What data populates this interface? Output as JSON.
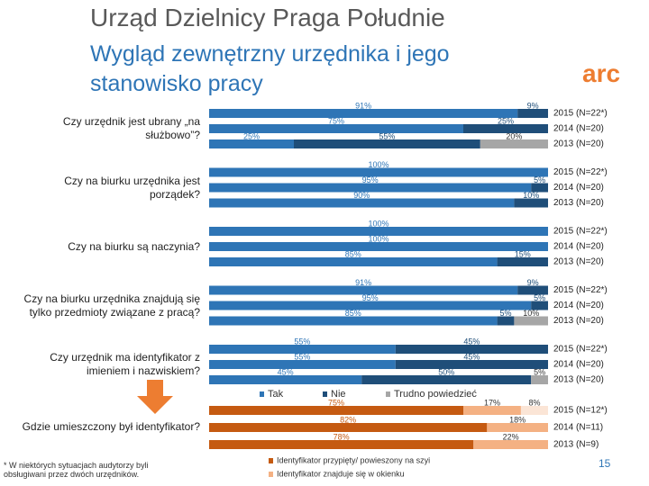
{
  "header": {
    "title": "Urząd Dzielnicy Praga Południe",
    "subtitle": "Wygląd zewnętrzny urzędnika i jego stanowisko pracy",
    "logo": "arc"
  },
  "footnote": "* W niektórych sytuacjach audytorzy byli obsługiwani przez dwóch urzędników.",
  "page_number": "15",
  "chart_data": [
    {
      "type": "bar",
      "orientation": "horizontal",
      "stacked": true,
      "xlim": [
        0,
        100
      ],
      "groups": [
        "Czy urzędnik jest ubrany „na służbowo”?",
        "Czy na biurku urzędnika jest porządek?",
        "Czy na biurku są naczynia?",
        "Czy na biurku urzędnika znajdują się tylko przedmioty związane z pracą?",
        "Czy urzędnik ma identyfikator z imieniem i nazwiskiem?"
      ],
      "categories": [
        "2015 (N=22*)",
        "2014 (N=20)",
        "2013 (N=20)",
        "2015 (N=22*)",
        "2014 (N=20)",
        "2013 (N=20)",
        "2015 (N=22*)",
        "2014 (N=20)",
        "2013 (N=20)",
        "2015 (N=22*)",
        "2014 (N=20)",
        "2013 (N=20)",
        "2015 (N=22*)",
        "2014 (N=20)",
        "2013 (N=20)"
      ],
      "series": [
        {
          "name": "Tak",
          "color": "#2e75b6",
          "values": [
            91,
            75,
            25,
            100,
            95,
            90,
            100,
            100,
            85,
            91,
            95,
            85,
            55,
            55,
            45
          ],
          "value_labels": [
            "91%",
            "75%",
            "25%",
            "100%",
            "95%",
            "90%",
            "100%",
            "100%",
            "85%",
            "91%",
            "95%",
            "85%",
            "55%",
            "55%",
            "45%"
          ]
        },
        {
          "name": "Nie",
          "color": "#1f4e79",
          "values": [
            9,
            25,
            55,
            null,
            5,
            10,
            null,
            null,
            15,
            9,
            5,
            5,
            45,
            45,
            50
          ],
          "value_labels": [
            "9%",
            "25%",
            "55%",
            null,
            "5%",
            "10%",
            null,
            null,
            "15%",
            "9%",
            "5%",
            "5%",
            "45%",
            "45%",
            "50%"
          ]
        },
        {
          "name": "Trudno powiedzieć",
          "color": "#a6a6a6",
          "values": [
            null,
            null,
            20,
            null,
            null,
            null,
            null,
            null,
            null,
            null,
            null,
            10,
            null,
            null,
            5
          ],
          "value_labels": [
            null,
            null,
            "20%",
            null,
            null,
            null,
            null,
            null,
            null,
            null,
            null,
            "10%",
            null,
            null,
            "5%"
          ]
        }
      ]
    },
    {
      "type": "bar",
      "orientation": "horizontal",
      "stacked": true,
      "xlim": [
        0,
        100
      ],
      "groups": [
        "Gdzie umieszczony był identyfikator?"
      ],
      "categories": [
        "2015 (N=12*)",
        "2014 (N=11)",
        "2013 (N=9)"
      ],
      "series": [
        {
          "name": "Identyfikator przypięty/ powieszony na szyi",
          "color": "#c55a11",
          "values": [
            75,
            82,
            78
          ],
          "value_labels": [
            "75%",
            "82%",
            "78%"
          ]
        },
        {
          "name": "Identyfikator znajduje się w okienku",
          "color": "#f4b183",
          "values": [
            17,
            18,
            22
          ],
          "value_labels": [
            "17%",
            "18%",
            "22%"
          ]
        },
        {
          "color": "#fbe5d6",
          "values": [
            8,
            null,
            null
          ],
          "value_labels": [
            "8%",
            null,
            null
          ]
        }
      ]
    }
  ]
}
